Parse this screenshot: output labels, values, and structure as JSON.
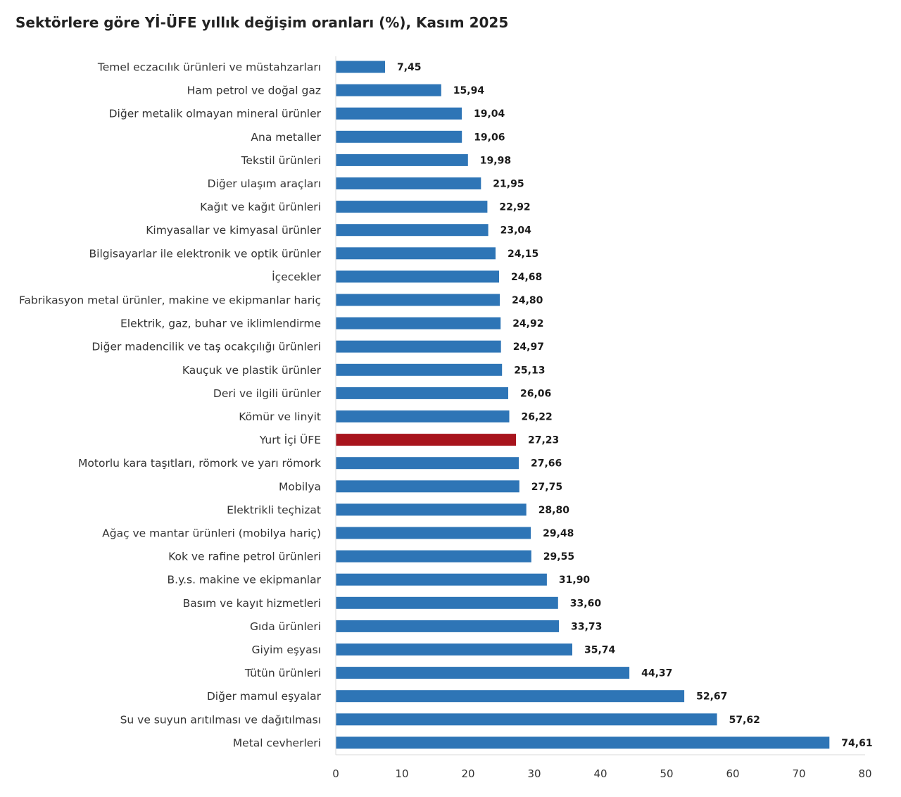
{
  "chart_data": {
    "type": "bar",
    "orientation": "horizontal",
    "title": "Sektörlere göre Yİ-ÜFE yıllık değişim oranları (%), Kasım 2025",
    "xlabel": "",
    "ylabel": "",
    "xlim": [
      0,
      80
    ],
    "ticks": [
      0,
      10,
      20,
      30,
      40,
      50,
      60,
      70,
      80
    ],
    "tick_labels": [
      "0",
      "10",
      "20",
      "30",
      "40",
      "50",
      "60",
      "70",
      "80"
    ],
    "grid": false,
    "legend": "none",
    "colors": {
      "bar": "#2e75b6",
      "highlight": "#a8141d",
      "axis": "#d9d9d9"
    },
    "highlight_category": "Yurt İçi ÜFE",
    "categories": [
      "Temel eczacılık ürünleri ve müstahzarları",
      "Ham petrol ve doğal gaz",
      "Diğer metalik olmayan mineral ürünler",
      "Ana metaller",
      "Tekstil ürünleri",
      "Diğer ulaşım araçları",
      "Kağıt ve kağıt ürünleri",
      "Kimyasallar ve kimyasal ürünler",
      "Bilgisayarlar ile elektronik ve optik ürünler",
      "İçecekler",
      "Fabrikasyon metal ürünler, makine ve ekipmanlar hariç",
      "Elektrik, gaz, buhar ve iklimlendirme",
      "Diğer madencilik ve taş ocakçılığı ürünleri",
      "Kauçuk ve plastik ürünler",
      "Deri ve ilgili ürünler",
      "Kömür ve linyit",
      "Yurt İçi ÜFE",
      "Motorlu kara taşıtları, römork ve yarı römork",
      "Mobilya",
      "Elektrikli teçhizat",
      "Ağaç ve mantar ürünleri (mobilya hariç)",
      "Kok ve rafine petrol ürünleri",
      "B.y.s. makine ve ekipmanlar",
      "Basım ve kayıt hizmetleri",
      "Gıda ürünleri",
      "Giyim eşyası",
      "Tütün ürünleri",
      "Diğer mamul eşyalar",
      "Su ve suyun arıtılması ve dağıtılması",
      "Metal cevherleri"
    ],
    "values": [
      7.45,
      15.94,
      19.04,
      19.06,
      19.98,
      21.95,
      22.92,
      23.04,
      24.15,
      24.68,
      24.8,
      24.92,
      24.97,
      25.13,
      26.06,
      26.22,
      27.23,
      27.66,
      27.75,
      28.8,
      29.48,
      29.55,
      31.9,
      33.6,
      33.73,
      35.74,
      44.37,
      52.67,
      57.62,
      74.61
    ],
    "value_labels": [
      "7,45",
      "15,94",
      "19,04",
      "19,06",
      "19,98",
      "21,95",
      "22,92",
      "23,04",
      "24,15",
      "24,68",
      "24,80",
      "24,92",
      "24,97",
      "25,13",
      "26,06",
      "26,22",
      "27,23",
      "27,66",
      "27,75",
      "28,80",
      "29,48",
      "29,55",
      "31,90",
      "33,60",
      "33,73",
      "35,74",
      "44,37",
      "52,67",
      "57,62",
      "74,61"
    ]
  }
}
